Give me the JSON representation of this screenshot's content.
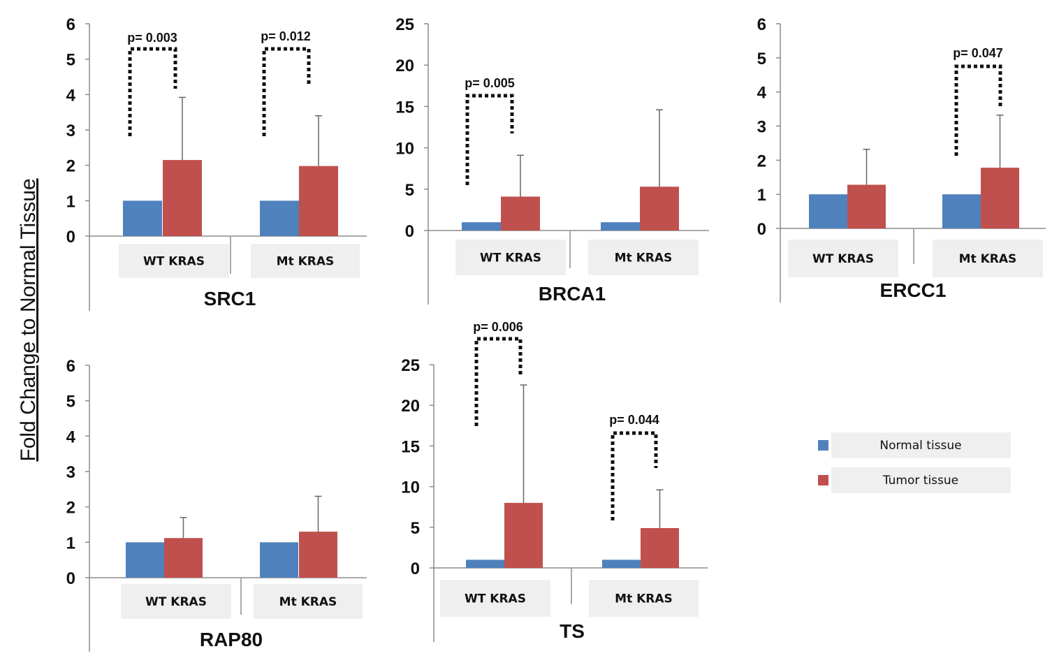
{
  "figure": {
    "ylabel": "Fold Change to Normal Tissue",
    "legend": {
      "placement": "right-middle",
      "entries": [
        {
          "name": "Normal tissue",
          "color": "#4f81bd"
        },
        {
          "name": "Tumor tissue",
          "color": "#c0504d"
        }
      ]
    }
  },
  "chart_data": [
    {
      "type": "bar",
      "title": "SRC1",
      "categories": [
        "WT KRAS",
        "Mt KRAS"
      ],
      "ylim": [
        0,
        6
      ],
      "yticks": [
        "0",
        "1",
        "2",
        "3",
        "4",
        "5",
        "6"
      ],
      "series": [
        {
          "name": "Normal tissue",
          "values": [
            1.0,
            1.0
          ]
        },
        {
          "name": "Tumor tissue",
          "values": [
            2.15,
            1.98
          ],
          "error_upper": [
            1.77,
            1.42
          ]
        }
      ],
      "annotations": [
        {
          "text": "p= 0.003",
          "category": 0
        },
        {
          "text": "p= 0.012",
          "category": 1
        }
      ]
    },
    {
      "type": "bar",
      "title": "BRCA1",
      "categories": [
        "WT KRAS",
        "Mt KRAS"
      ],
      "ylim": [
        0,
        25
      ],
      "yticks": [
        "0",
        "5",
        "10",
        "15",
        "20",
        "25"
      ],
      "series": [
        {
          "name": "Normal tissue",
          "values": [
            1.0,
            1.0
          ]
        },
        {
          "name": "Tumor tissue",
          "values": [
            4.1,
            5.3
          ],
          "error_upper": [
            5.0,
            9.3
          ]
        }
      ],
      "annotations": [
        {
          "text": "p= 0.005",
          "category": 0
        }
      ]
    },
    {
      "type": "bar",
      "title": "ERCC1",
      "categories": [
        "WT KRAS",
        "Mt KRAS"
      ],
      "ylim": [
        0,
        6
      ],
      "yticks": [
        "0",
        "1",
        "2",
        "3",
        "4",
        "5",
        "6"
      ],
      "series": [
        {
          "name": "Normal tissue",
          "values": [
            1.0,
            1.0
          ]
        },
        {
          "name": "Tumor tissue",
          "values": [
            1.28,
            1.78
          ],
          "error_upper": [
            1.04,
            1.54
          ]
        }
      ],
      "annotations": [
        {
          "text": "p= 0.047",
          "category": 1
        }
      ]
    },
    {
      "type": "bar",
      "title": "RAP80",
      "categories": [
        "WT KRAS",
        "Mt KRAS"
      ],
      "ylim": [
        0,
        6
      ],
      "yticks": [
        "0",
        "1",
        "2",
        "3",
        "4",
        "5",
        "6"
      ],
      "series": [
        {
          "name": "Normal tissue",
          "values": [
            1.0,
            1.0
          ]
        },
        {
          "name": "Tumor tissue",
          "values": [
            1.12,
            1.3
          ],
          "error_upper": [
            0.58,
            1.0
          ]
        }
      ],
      "annotations": []
    },
    {
      "type": "bar",
      "title": "TS",
      "categories": [
        "WT KRAS",
        "Mt KRAS"
      ],
      "ylim": [
        0,
        25
      ],
      "yticks": [
        "0",
        "5",
        "10",
        "15",
        "20",
        "25"
      ],
      "series": [
        {
          "name": "Normal tissue",
          "values": [
            1.0,
            1.0
          ]
        },
        {
          "name": "Tumor tissue",
          "values": [
            8.0,
            4.9
          ],
          "error_upper": [
            14.5,
            4.7
          ]
        }
      ],
      "annotations": [
        {
          "text": "p= 0.006",
          "category": 0
        },
        {
          "text": "p= 0.044",
          "category": 1
        }
      ]
    }
  ]
}
